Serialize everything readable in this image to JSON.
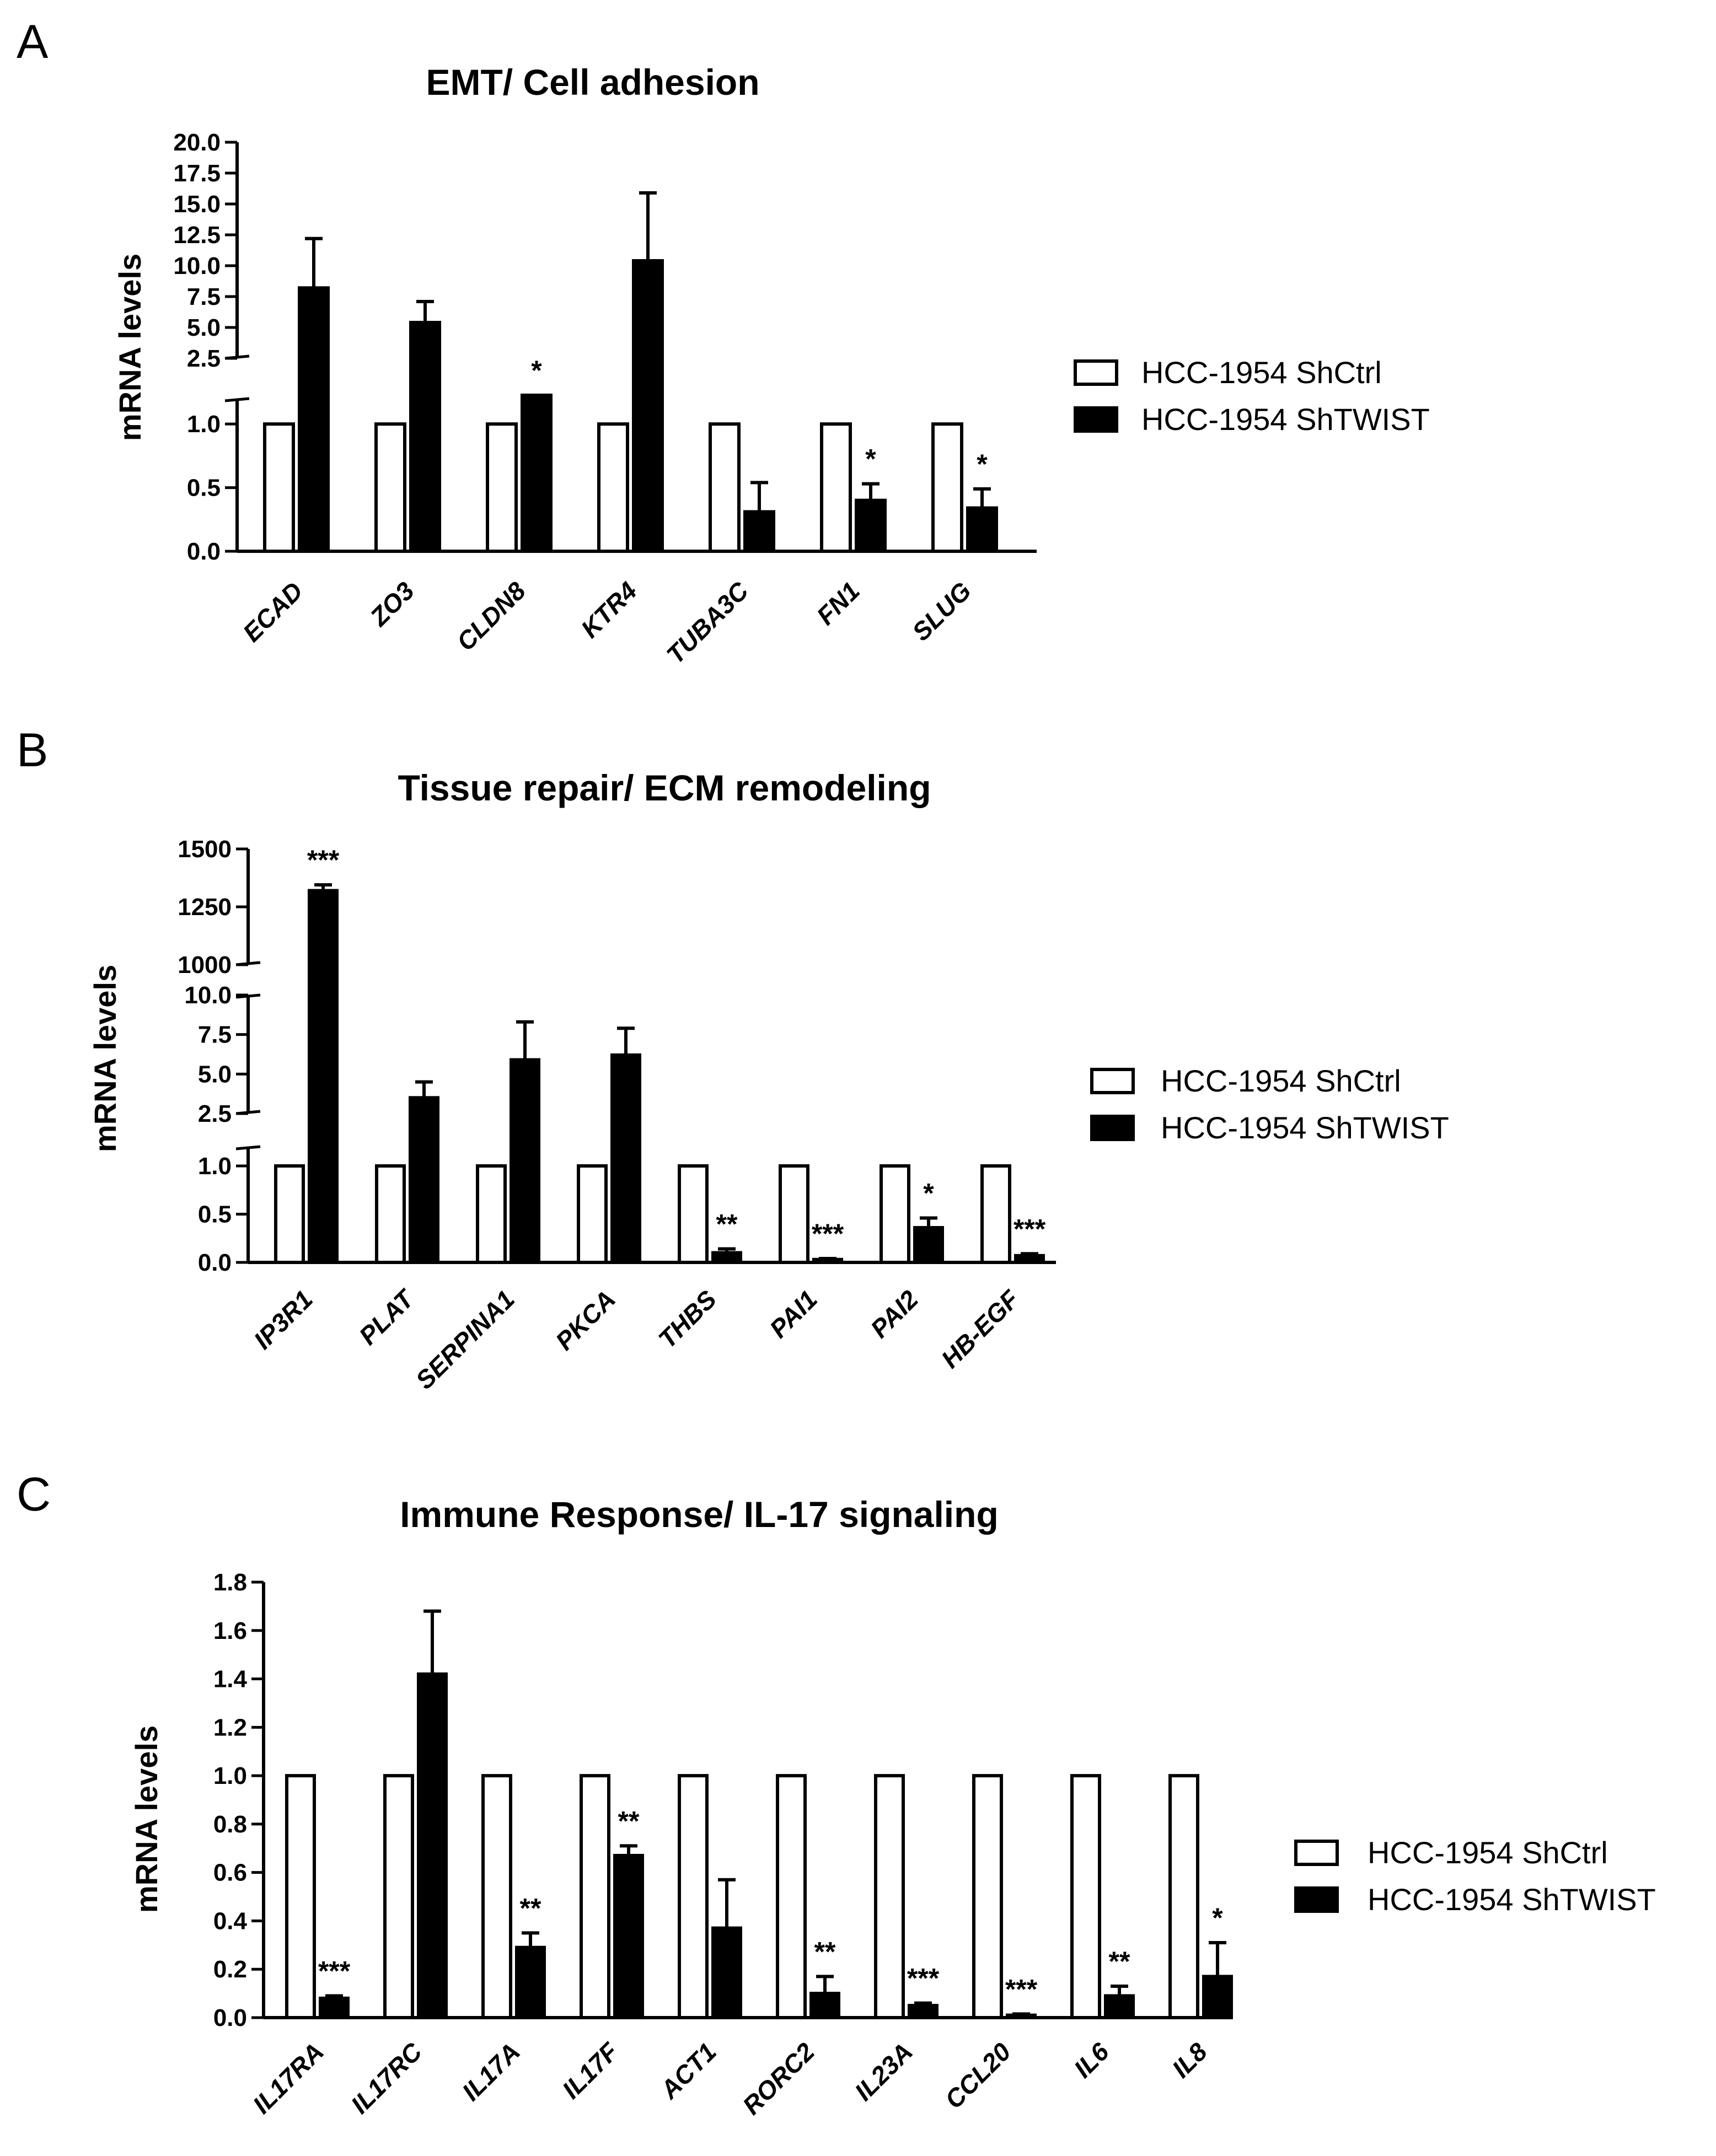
{
  "chart_data": [
    {
      "type": "bar",
      "panel_label": "A",
      "title": "EMT/ Cell adhesion",
      "ylabel": "mRNA levels",
      "broken_axis": true,
      "lower_ylim": [
        0,
        1.2
      ],
      "lower_ticks": [
        "0.0",
        "0.5",
        "1.0"
      ],
      "upper_ylim": [
        2.5,
        20.0
      ],
      "upper_ticks": [
        "2.5",
        "5.0",
        "7.5",
        "10.0",
        "12.5",
        "15.0",
        "17.5",
        "20.0"
      ],
      "categories": [
        "ECAD",
        "ZO3",
        "CLDN8",
        "KTR4",
        "TUBA3C",
        "FN1",
        "SLUG"
      ],
      "series": [
        {
          "name": "HCC-1954 ShCtrl",
          "fill": "#ffffff",
          "values": [
            1,
            1,
            1,
            1,
            1,
            1,
            1
          ],
          "errors": [
            0,
            0,
            0,
            0,
            0,
            0,
            0
          ]
        },
        {
          "name": "HCC-1954 ShTWIST",
          "fill": "#000000",
          "values": [
            8.2,
            5.4,
            2.2,
            10.4,
            0.31,
            0.4,
            0.34
          ],
          "errors": [
            4.0,
            1.7,
            0.15,
            5.5,
            0.23,
            0.13,
            0.15
          ]
        }
      ],
      "significance": [
        "",
        "",
        "*",
        "",
        "",
        "*",
        "*"
      ]
    },
    {
      "type": "bar",
      "panel_label": "B",
      "title": "Tissue repair/ ECM remodeling",
      "ylabel": "mRNA levels",
      "broken_axis": true,
      "lower_ylim": [
        0,
        1.2
      ],
      "lower_ticks": [
        "0.0",
        "0.5",
        "1.0"
      ],
      "middle_ylim": [
        2.5,
        10.0
      ],
      "middle_ticks": [
        "2.5",
        "5.0",
        "7.5",
        "10.0"
      ],
      "upper_ylim": [
        1000,
        1500
      ],
      "upper_ticks": [
        "1000",
        "1250",
        "1500"
      ],
      "categories": [
        "IP3R1",
        "PLAT",
        "SERPINA1",
        "PKCA",
        "THBS",
        "PAI1",
        "PAI2",
        "HB-EGF"
      ],
      "series": [
        {
          "name": "HCC-1954 ShCtrl",
          "fill": "#ffffff",
          "values": [
            1,
            1,
            1,
            1,
            1,
            1,
            1,
            1
          ],
          "errors": [
            0,
            0,
            0,
            0,
            0,
            0,
            0,
            0
          ]
        },
        {
          "name": "HCC-1954 ShTWIST",
          "fill": "#000000",
          "values": [
            1320,
            3.5,
            5.9,
            6.2,
            0.1,
            0.03,
            0.36,
            0.07
          ],
          "errors": [
            25,
            1.0,
            2.4,
            1.7,
            0.04,
            0.01,
            0.1,
            0.02
          ]
        }
      ],
      "significance": [
        "***",
        "",
        "",
        "",
        "**",
        "***",
        "*",
        "***"
      ]
    },
    {
      "type": "bar",
      "panel_label": "C",
      "title": "Immune Response/ IL-17 signaling",
      "ylabel": "mRNA levels",
      "broken_axis": false,
      "ylim": [
        0,
        1.8
      ],
      "ticks": [
        "0.0",
        "0.2",
        "0.4",
        "0.6",
        "0.8",
        "1.0",
        "1.2",
        "1.4",
        "1.6",
        "1.8"
      ],
      "categories": [
        "IL17RA",
        "IL17RC",
        "IL17A",
        "IL17F",
        "ACT1",
        "RORC2",
        "IL23A",
        "CCL20",
        "IL6",
        "IL8"
      ],
      "series": [
        {
          "name": "HCC-1954 ShCtrl",
          "fill": "#ffffff",
          "values": [
            1,
            1,
            1,
            1,
            1,
            1,
            1,
            1,
            1,
            1
          ],
          "errors": [
            0,
            0,
            0,
            0,
            0,
            0,
            0,
            0,
            0,
            0
          ]
        },
        {
          "name": "HCC-1954 ShTWIST",
          "fill": "#000000",
          "values": [
            0.08,
            1.42,
            0.29,
            0.67,
            0.37,
            0.1,
            0.05,
            0.01,
            0.09,
            0.17
          ],
          "errors": [
            0.01,
            0.26,
            0.06,
            0.04,
            0.2,
            0.07,
            0.01,
            0.005,
            0.04,
            0.14
          ]
        }
      ],
      "significance": [
        "***",
        "",
        "**",
        "**",
        "",
        "**",
        "***",
        "***",
        "**",
        "*"
      ]
    }
  ]
}
